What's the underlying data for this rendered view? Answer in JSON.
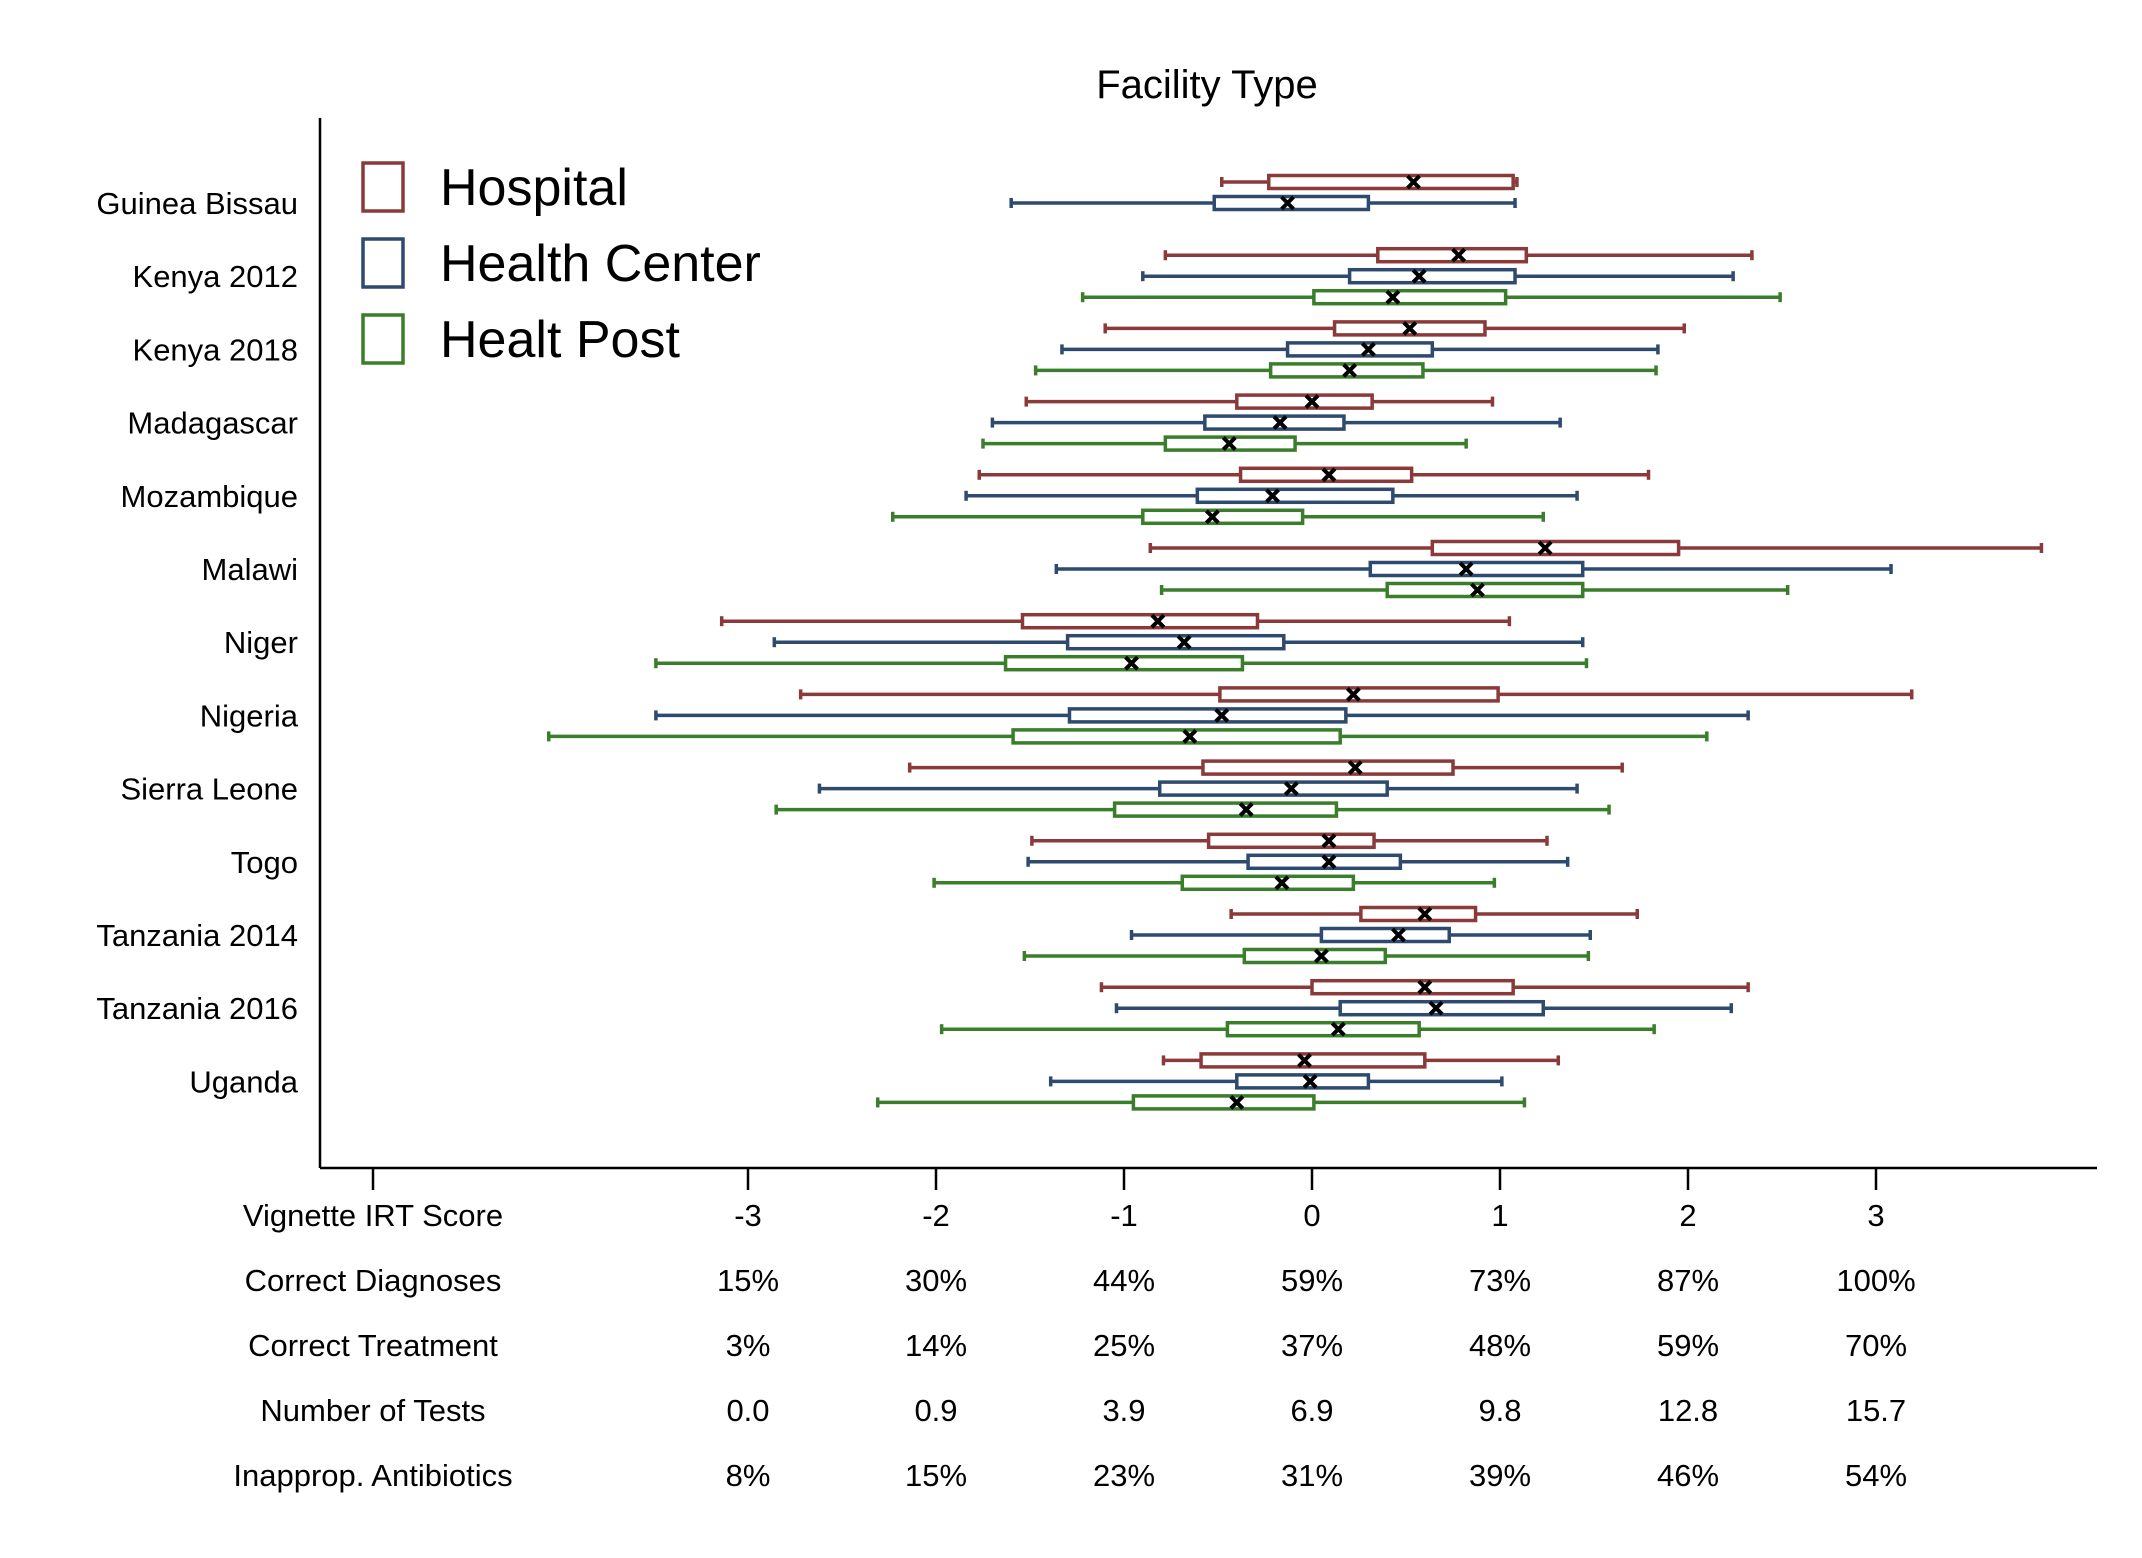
{
  "chart_data": {
    "type": "boxplot",
    "title": "Facility Type",
    "legend": {
      "placement": "top-left",
      "entries": [
        {
          "name": "Hospital",
          "color": "#8B3A3A"
        },
        {
          "name": "Health Center",
          "color": "#2E4A6E"
        },
        {
          "name": "Healt Post",
          "color": "#3A7D2A"
        }
      ]
    },
    "xlim": [
      -4,
      4.2
    ],
    "x_ticks": [
      -3,
      -2,
      -1,
      0,
      1,
      2,
      3
    ],
    "table_rows": [
      {
        "label": "Vignette IRT Score",
        "values": [
          "-3",
          "-2",
          "-1",
          "0",
          "1",
          "2",
          "3"
        ]
      },
      {
        "label": "Correct Diagnoses",
        "values": [
          "15%",
          "30%",
          "44%",
          "59%",
          "73%",
          "87%",
          "100%"
        ]
      },
      {
        "label": "Correct Treatment",
        "values": [
          "3%",
          "14%",
          "25%",
          "37%",
          "48%",
          "59%",
          "70%"
        ]
      },
      {
        "label": "Number of Tests",
        "values": [
          "0.0",
          "0.9",
          "3.9",
          "6.9",
          "9.8",
          "12.8",
          "15.7"
        ]
      },
      {
        "label": "Inapprop. Antibiotics",
        "values": [
          "8%",
          "15%",
          "23%",
          "31%",
          "39%",
          "46%",
          "54%"
        ]
      }
    ],
    "countries": [
      {
        "name": "Guinea Bissau",
        "series": [
          {
            "type": 0,
            "min": -0.48,
            "q1": -0.23,
            "med": 0.54,
            "q3": 1.07,
            "max": 1.09
          },
          {
            "type": 1,
            "min": -1.6,
            "q1": -0.52,
            "med": -0.13,
            "q3": 0.3,
            "max": 1.08
          }
        ]
      },
      {
        "name": "Kenya 2012",
        "series": [
          {
            "type": 0,
            "min": -0.78,
            "q1": 0.35,
            "med": 0.78,
            "q3": 1.14,
            "max": 2.34
          },
          {
            "type": 1,
            "min": -0.9,
            "q1": 0.2,
            "med": 0.57,
            "q3": 1.08,
            "max": 2.24
          },
          {
            "type": 2,
            "min": -1.22,
            "q1": 0.01,
            "med": 0.43,
            "q3": 1.03,
            "max": 2.49
          }
        ]
      },
      {
        "name": "Kenya 2018",
        "series": [
          {
            "type": 0,
            "min": -1.1,
            "q1": 0.12,
            "med": 0.52,
            "q3": 0.92,
            "max": 1.98
          },
          {
            "type": 1,
            "min": -1.33,
            "q1": -0.13,
            "med": 0.3,
            "q3": 0.64,
            "max": 1.84
          },
          {
            "type": 2,
            "min": -1.47,
            "q1": -0.22,
            "med": 0.2,
            "q3": 0.59,
            "max": 1.83
          }
        ]
      },
      {
        "name": "Madagascar",
        "series": [
          {
            "type": 0,
            "min": -1.52,
            "q1": -0.4,
            "med": 0.0,
            "q3": 0.32,
            "max": 0.96
          },
          {
            "type": 1,
            "min": -1.7,
            "q1": -0.57,
            "med": -0.17,
            "q3": 0.17,
            "max": 1.32
          },
          {
            "type": 2,
            "min": -1.75,
            "q1": -0.78,
            "med": -0.44,
            "q3": -0.09,
            "max": 0.82
          }
        ]
      },
      {
        "name": "Mozambique",
        "series": [
          {
            "type": 0,
            "min": -1.77,
            "q1": -0.38,
            "med": 0.09,
            "q3": 0.53,
            "max": 1.79
          },
          {
            "type": 1,
            "min": -1.84,
            "q1": -0.61,
            "med": -0.21,
            "q3": 0.43,
            "max": 1.41
          },
          {
            "type": 2,
            "min": -2.23,
            "q1": -0.9,
            "med": -0.53,
            "q3": -0.05,
            "max": 1.23
          }
        ]
      },
      {
        "name": "Malawi",
        "series": [
          {
            "type": 0,
            "min": -0.86,
            "q1": 0.64,
            "med": 1.24,
            "q3": 1.95,
            "max": 3.88
          },
          {
            "type": 1,
            "min": -1.36,
            "q1": 0.31,
            "med": 0.82,
            "q3": 1.44,
            "max": 3.08
          },
          {
            "type": 2,
            "min": -0.8,
            "q1": 0.4,
            "med": 0.88,
            "q3": 1.44,
            "max": 2.53
          }
        ]
      },
      {
        "name": "Niger",
        "series": [
          {
            "type": 0,
            "min": -3.14,
            "q1": -1.54,
            "med": -0.82,
            "q3": -0.29,
            "max": 1.05
          },
          {
            "type": 1,
            "min": -2.86,
            "q1": -1.3,
            "med": -0.68,
            "q3": -0.15,
            "max": 1.44
          },
          {
            "type": 2,
            "min": -3.49,
            "q1": -1.63,
            "med": -0.96,
            "q3": -0.37,
            "max": 1.46
          }
        ]
      },
      {
        "name": "Nigeria",
        "series": [
          {
            "type": 0,
            "min": -2.72,
            "q1": -0.49,
            "med": 0.22,
            "q3": 0.99,
            "max": 3.19
          },
          {
            "type": 1,
            "min": -3.49,
            "q1": -1.29,
            "med": -0.48,
            "q3": 0.18,
            "max": 2.32
          },
          {
            "type": 2,
            "min": -4.06,
            "q1": -1.59,
            "med": -0.65,
            "q3": 0.15,
            "max": 2.1
          }
        ]
      },
      {
        "name": "Sierra Leone",
        "series": [
          {
            "type": 0,
            "min": -2.14,
            "q1": -0.58,
            "med": 0.23,
            "q3": 0.75,
            "max": 1.65
          },
          {
            "type": 1,
            "min": -2.62,
            "q1": -0.81,
            "med": -0.11,
            "q3": 0.4,
            "max": 1.41
          },
          {
            "type": 2,
            "min": -2.85,
            "q1": -1.05,
            "med": -0.35,
            "q3": 0.13,
            "max": 1.58
          }
        ]
      },
      {
        "name": "Togo",
        "series": [
          {
            "type": 0,
            "min": -1.49,
            "q1": -0.55,
            "med": 0.09,
            "q3": 0.33,
            "max": 1.25
          },
          {
            "type": 1,
            "min": -1.51,
            "q1": -0.34,
            "med": 0.09,
            "q3": 0.47,
            "max": 1.36
          },
          {
            "type": 2,
            "min": -2.01,
            "q1": -0.69,
            "med": -0.16,
            "q3": 0.22,
            "max": 0.97
          }
        ]
      },
      {
        "name": "Tanzania 2014",
        "series": [
          {
            "type": 0,
            "min": -0.43,
            "q1": 0.26,
            "med": 0.6,
            "q3": 0.87,
            "max": 1.73
          },
          {
            "type": 1,
            "min": -0.96,
            "q1": 0.05,
            "med": 0.46,
            "q3": 0.73,
            "max": 1.48
          },
          {
            "type": 2,
            "min": -1.53,
            "q1": -0.36,
            "med": 0.05,
            "q3": 0.39,
            "max": 1.47
          }
        ]
      },
      {
        "name": "Tanzania 2016",
        "series": [
          {
            "type": 0,
            "min": -1.12,
            "q1": 0.0,
            "med": 0.6,
            "q3": 1.07,
            "max": 2.32
          },
          {
            "type": 1,
            "min": -1.04,
            "q1": 0.15,
            "med": 0.66,
            "q3": 1.23,
            "max": 2.23
          },
          {
            "type": 2,
            "min": -1.97,
            "q1": -0.45,
            "med": 0.14,
            "q3": 0.57,
            "max": 1.82
          }
        ]
      },
      {
        "name": "Uganda",
        "series": [
          {
            "type": 0,
            "min": -0.79,
            "q1": -0.59,
            "med": -0.04,
            "q3": 0.6,
            "max": 1.31
          },
          {
            "type": 1,
            "min": -1.39,
            "q1": -0.4,
            "med": -0.01,
            "q3": 0.3,
            "max": 1.01
          },
          {
            "type": 2,
            "min": -2.31,
            "q1": -0.95,
            "med": -0.4,
            "q3": 0.01,
            "max": 1.13
          }
        ]
      }
    ]
  }
}
